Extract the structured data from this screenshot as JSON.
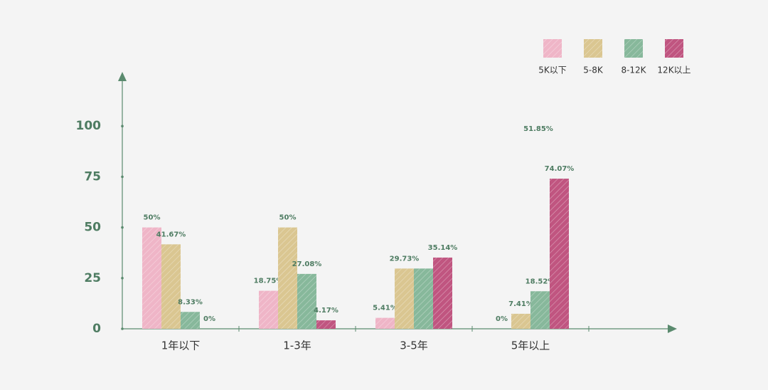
{
  "chart_data": {
    "type": "bar",
    "categories": [
      "1年以下",
      "1-3年",
      "3-5年",
      "5年以上"
    ],
    "series": [
      {
        "name": "5K以下",
        "color": "#efb5c7",
        "values": [
          50,
          18.75,
          5.41,
          0
        ],
        "value_labels": [
          "50%",
          "18.75%",
          "5.41%",
          "0%"
        ]
      },
      {
        "name": "5-8K",
        "color": "#dac691",
        "values": [
          41.67,
          50,
          29.73,
          7.41
        ],
        "value_labels": [
          "41.67%",
          "50%",
          "29.73%",
          "7.41%"
        ]
      },
      {
        "name": "8-12K",
        "color": "#87b89b",
        "values": [
          8.33,
          27.08,
          29.73,
          18.52
        ],
        "value_labels": [
          "8.33%",
          "27.08%",
          null,
          "18.52%"
        ]
      },
      {
        "name": "12K以上",
        "color": "#c05580",
        "values": [
          0,
          4.17,
          35.14,
          74.07
        ],
        "value_labels": [
          "0%",
          "4.17%",
          "35.14%",
          "74.07%"
        ]
      }
    ],
    "annotation": "51.85%",
    "ylim": [
      0,
      125
    ],
    "yticks": [
      0,
      25,
      50,
      75,
      100
    ],
    "grid": false,
    "legend": "top-right"
  }
}
